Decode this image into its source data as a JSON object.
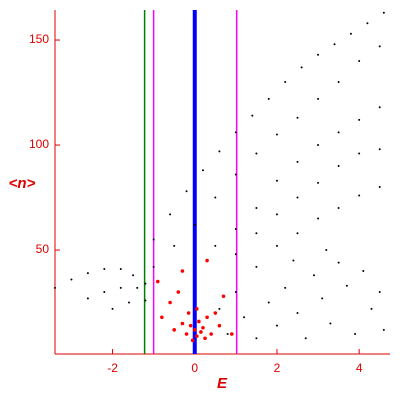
{
  "chart_data": {
    "type": "scatter",
    "xlabel": "E",
    "ylabel": "<n>",
    "xlim": [
      -3.4,
      4.75
    ],
    "ylim": [
      0.5,
      164.3
    ],
    "xticks": [
      -2,
      0,
      2,
      4
    ],
    "yticks": [
      50,
      100,
      150
    ],
    "vlines": [
      {
        "x": -1.22,
        "color": "#008000"
      },
      {
        "x": -1.0,
        "color": "#ff00ff"
      },
      {
        "x": 0,
        "color": "#0000ff"
      },
      {
        "x": 1.02,
        "color": "#ff00ff"
      }
    ],
    "series": [
      {
        "color": "#000000",
        "x": [
          -1.0,
          -0.6,
          -0.2,
          0.2,
          0.6,
          1.0,
          1.4,
          1.8,
          2.2,
          2.6,
          3.0,
          3.4,
          3.8,
          4.2,
          4.6,
          -1.0,
          -0.5,
          0,
          0.5,
          1.0,
          1.5,
          2.0,
          2.5,
          3.0,
          3.5,
          4.0,
          4.5,
          -3.4,
          -3.0,
          -2.6,
          -2.2,
          -1.8,
          -1.5,
          -1.2,
          0.5,
          1.0,
          1.5,
          2.0,
          2.5,
          3.0,
          3.5,
          4.0,
          4.5,
          -2.6,
          -2.2,
          -1.8,
          -1.4,
          1.0,
          1.5,
          2.0,
          2.5,
          3.0,
          3.5,
          4.0,
          4.5,
          -2.0,
          -1.6,
          -1.2,
          1.5,
          2.0,
          2.5,
          3.0,
          3.5,
          4.0,
          4.5,
          0.8,
          1.2,
          1.5,
          1.8,
          2.0,
          2.2,
          2.5,
          2.7,
          2.9,
          3.1,
          3.3,
          3.5,
          3.7,
          3.9,
          4.1,
          4.3,
          4.5,
          4.6,
          1.0,
          2.4,
          3.2,
          0.6
        ],
        "values": [
          55,
          67,
          78,
          88,
          97,
          106,
          114,
          122,
          130,
          137,
          143,
          148,
          153,
          158,
          163,
          42,
          52,
          62,
          75,
          86,
          96,
          105,
          113,
          122,
          130,
          140,
          147,
          32,
          36,
          39,
          41,
          41,
          38,
          34,
          52,
          60,
          70,
          83,
          92,
          100,
          106,
          112,
          118,
          27,
          30,
          32,
          32,
          48,
          58,
          67,
          75,
          82,
          90,
          96,
          98,
          22,
          25,
          26,
          42,
          52,
          58,
          65,
          70,
          76,
          80,
          10,
          18,
          8,
          25,
          14,
          32,
          20,
          8,
          38,
          27,
          15,
          44,
          33,
          10,
          40,
          22,
          30,
          12,
          30,
          45,
          50,
          22
        ]
      },
      {
        "color": "#ff0000",
        "x": [
          -0.8,
          -0.6,
          -0.5,
          -0.4,
          -0.3,
          -0.2,
          -0.1,
          0,
          0.05,
          0.1,
          0.15,
          0.2,
          0.25,
          0.3,
          0.4,
          0.5,
          0.6,
          0.7,
          0.9,
          -0.9,
          -0.3,
          0.3,
          -0.15,
          0.05,
          -0.05
        ],
        "values": [
          18,
          25,
          12,
          30,
          15,
          10,
          14,
          12,
          9,
          16,
          11,
          13,
          8,
          18,
          10,
          20,
          14,
          28,
          10,
          35,
          40,
          45,
          20,
          22,
          7
        ]
      }
    ]
  }
}
